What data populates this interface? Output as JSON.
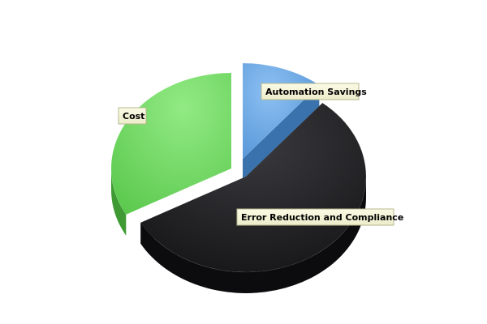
{
  "chart_data": {
    "type": "pie",
    "title": "",
    "slices": [
      {
        "label": "Automation Savings",
        "value": 11,
        "color": "#5b9fdf",
        "exploded": true
      },
      {
        "label": "Error Reduction and Compliance",
        "value": 56,
        "color": "#1c1c1e",
        "exploded": true
      },
      {
        "label": "Cost",
        "value": 33,
        "color": "#6fd860",
        "exploded": false
      }
    ],
    "style": "3d",
    "legend": "none",
    "label_style": "callout-boxes"
  }
}
